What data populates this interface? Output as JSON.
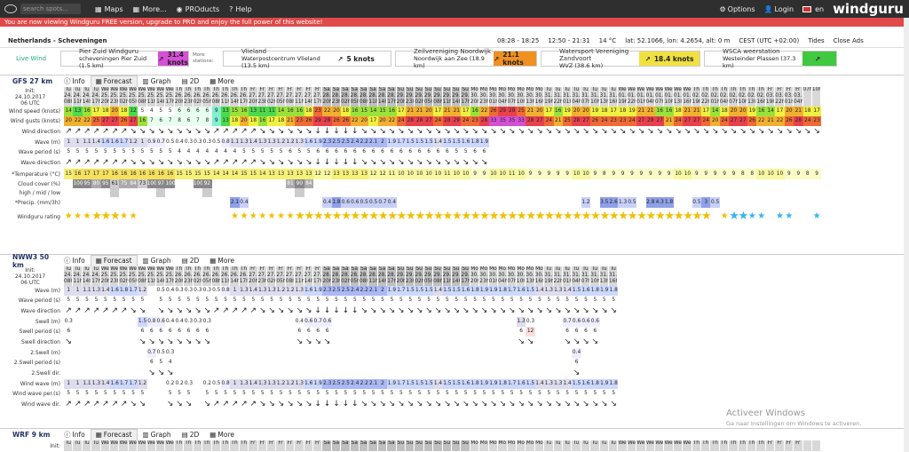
{
  "topbar": {
    "search_placeholder": "search spots...",
    "nav": [
      "Maps",
      "More...",
      "PROducts",
      "Help"
    ],
    "options": "Options",
    "login": "Login",
    "lang": "en",
    "brand": "windguru"
  },
  "promo": "You are now viewing Windguru FREE version, upgrade to PRO and enjoy the full power of this website!",
  "location": {
    "name": "Netherlands - Scheveningen",
    "sun": "08:28 - 18:25",
    "daylight": "12:50 - 21:31",
    "temp": "14 °C",
    "coords": "lat: 52.1066, lon: 4.2654, alt: 0 m",
    "tz": "CEST (UTC +02:00)",
    "tides": "Tides",
    "close": "Close Ads"
  },
  "live": {
    "label": "Live Wind",
    "more": "More stations:",
    "stations": [
      {
        "name": "Pier Zuid Windguru",
        "sub": "scheveningen Pier Zuid (1.5 km)",
        "knots": "31.4 knots",
        "color": "#d64fd6"
      },
      {
        "name": "Vlieland",
        "sub": "Waterpostcentrum Vlieland (13.5 km)",
        "knots": "5 knots",
        "color": "#ffffff"
      },
      {
        "name": "Zeilvereniging Noordwijk",
        "sub": "Noordwijk aan Zee (18.9 km)",
        "knots": "21.1 knots",
        "color": "#f09020"
      },
      {
        "name": "Watersport Vereniging Zandvoort",
        "sub": "WVZ (38.6 km)",
        "knots": "18.4 knots",
        "color": "#f0e040"
      },
      {
        "name": "WSCA weerstation",
        "sub": "Westeinder Plassen (37.3 km)",
        "knots": "",
        "color": "#40c840"
      }
    ]
  },
  "tabs": [
    "Info",
    "Forecast",
    "Graph",
    "2D",
    "More"
  ],
  "gfs": {
    "model": "GFS 27 km",
    "init": [
      "Init:",
      "24.10.2017",
      "06 UTC"
    ],
    "days": [
      "Tu",
      "Tu",
      "Tu",
      "Tu",
      "We",
      "We",
      "We",
      "We",
      "We",
      "We",
      "We",
      "We",
      "Th",
      "Th",
      "Th",
      "Th",
      "Th",
      "Th",
      "Th",
      "Th",
      "Fr",
      "Fr",
      "Fr",
      "Fr",
      "Fr",
      "Fr",
      "Fr",
      "Fr",
      "Sa",
      "Sa",
      "Sa",
      "Sa",
      "Sa",
      "Sa",
      "Sa",
      "Sa",
      "Su",
      "Su",
      "Su",
      "Su",
      "Su",
      "Su",
      "Su",
      "Su",
      "Mo",
      "Mo",
      "Mo",
      "Mo",
      "Mo",
      "Mo",
      "Mo",
      "Mo",
      "Tu",
      "Tu",
      "Tu",
      "Tu",
      "Tu",
      "Tu",
      "Tu",
      "Tu",
      "We",
      "We",
      "We",
      "We",
      "We",
      "We",
      "We",
      "We",
      "Th",
      "Th",
      "Th",
      "Th",
      "Th",
      "Th",
      "Th",
      "Th",
      "Fr",
      "Fr",
      "Fr",
      "Fr"
    ],
    "dates": [
      "24.",
      "24.",
      "24.",
      "24.",
      "25.",
      "25.",
      "25.",
      "25.",
      "25.",
      "25.",
      "25.",
      "25.",
      "26.",
      "26.",
      "26.",
      "26.",
      "26.",
      "26.",
      "26.",
      "26.",
      "27.",
      "27.",
      "27.",
      "27.",
      "27.",
      "27.",
      "27.",
      "27.",
      "28.",
      "28.",
      "28.",
      "28.",
      "28.",
      "28.",
      "28.",
      "28.",
      "29.",
      "29.",
      "29.",
      "29.",
      "29.",
      "29.",
      "29.",
      "29.",
      "30.",
      "30.",
      "30.",
      "30.",
      "30.",
      "30.",
      "30.",
      "30.",
      "31.",
      "31.",
      "31.",
      "31.",
      "31.",
      "31.",
      "31.",
      "31.",
      "01.",
      "01.",
      "01.",
      "01.",
      "01.",
      "01.",
      "01.",
      "01.",
      "02.",
      "02.",
      "02.",
      "02.",
      "02.",
      "02.",
      "02.",
      "02.",
      "03.",
      "03.",
      "03.",
      "03."
    ],
    "hours": [
      "08h",
      "11h",
      "14h",
      "17h",
      "20h",
      "23h",
      "02h",
      "05h",
      "08h",
      "11h",
      "14h",
      "17h",
      "20h",
      "23h",
      "02h",
      "05h",
      "08h",
      "11h",
      "14h",
      "17h",
      "20h",
      "23h",
      "02h",
      "05h",
      "08h",
      "11h",
      "14h",
      "17h",
      "20h",
      "23h",
      "02h",
      "05h",
      "08h",
      "11h",
      "14h",
      "17h",
      "20h",
      "23h",
      "02h",
      "05h",
      "08h",
      "11h",
      "14h",
      "17h",
      "20h",
      "23h",
      "01h",
      "04h",
      "07h",
      "10h",
      "13h",
      "16h",
      "19h",
      "22h",
      "01h",
      "04h",
      "07h",
      "10h",
      "13h",
      "16h",
      "19h",
      "22h",
      "01h",
      "04h",
      "07h",
      "10h",
      "13h",
      "16h",
      "19h",
      "22h",
      "01h",
      "04h",
      "07h",
      "10h",
      "13h",
      "16h",
      "19h",
      "22h",
      "01h",
      "04h",
      "07h",
      "10h"
    ],
    "labels": [
      "Wind speed (knots)",
      "Wind gusts (knots)",
      "Wind direction",
      "Wave (m)",
      "Wave period (s)",
      "Wave direction",
      "*Temperature (°C)",
      "Cloud cover (%)",
      "high / mid / low",
      "*Precip. (mm/3h)",
      "Windguru rating"
    ],
    "speed": [
      14,
      13,
      16,
      17,
      18,
      20,
      18,
      12,
      5,
      4,
      5,
      5,
      6,
      6,
      6,
      6,
      9,
      13,
      15,
      16,
      13,
      11,
      11,
      14,
      16,
      16,
      18,
      23,
      22,
      20,
      18,
      16,
      15,
      14,
      15,
      16,
      17,
      21,
      21,
      20,
      17,
      21,
      21,
      17,
      16,
      22,
      26,
      29,
      28,
      25,
      21,
      20,
      17,
      16,
      19,
      20,
      20,
      19,
      18,
      17,
      18,
      19,
      21,
      21,
      16,
      16,
      18,
      21,
      21,
      17,
      14,
      18,
      20,
      20,
      19,
      16,
      14,
      17,
      20,
      21,
      18,
      17
    ],
    "gusts": [
      20,
      22,
      22,
      25,
      27,
      27,
      26,
      27,
      16,
      7,
      6,
      7,
      8,
      6,
      7,
      8,
      9,
      13,
      18,
      20,
      18,
      16,
      17,
      18,
      21,
      23,
      26,
      29,
      28,
      26,
      26,
      22,
      20,
      17,
      20,
      22,
      24,
      28,
      28,
      27,
      24,
      28,
      29,
      24,
      23,
      28,
      33,
      35,
      35,
      33,
      28,
      27,
      24,
      21,
      25,
      28,
      27,
      26,
      24,
      23,
      23,
      24,
      27,
      29,
      27,
      21,
      24,
      27,
      27,
      24,
      20,
      24,
      27,
      27,
      26,
      22,
      21,
      22,
      26,
      28,
      24,
      23
    ],
    "wave": [
      "1",
      "1",
      "1.1",
      "1.4",
      "1.6",
      "1.6",
      "1.7",
      "1.2",
      "1",
      "0.9",
      "0.7",
      "0.5",
      "0.4",
      "0.3",
      "0.3",
      "0.3",
      "0.5",
      "0.8",
      "1.1",
      "1.3",
      "1.4",
      "1.3",
      "1.3",
      "1.2",
      "1.2",
      "1.3",
      "1.6",
      "1.9",
      "2.3",
      "2.5",
      "2.5",
      "2.4",
      "2.2",
      "2.1",
      "2",
      "1.9",
      "1.7",
      "1.5",
      "1.5",
      "1.5",
      "1.4",
      "1.5",
      "1.5",
      "1.6",
      "1.8",
      "1.9",
      "",
      "",
      "",
      "",
      "",
      "",
      "",
      "",
      "",
      "",
      "",
      "",
      "",
      "",
      "",
      "",
      "",
      "",
      "",
      "",
      "",
      "",
      "",
      "",
      "",
      "",
      "",
      "",
      "",
      "",
      "",
      "",
      "",
      "",
      "",
      ""
    ],
    "period": [
      "5",
      "5",
      "5",
      "5",
      "5",
      "5",
      "5",
      "5",
      "5",
      "5",
      "5",
      "5",
      "4",
      "4",
      "4",
      "4",
      "4",
      "4",
      "4",
      "5",
      "5",
      "5",
      "5",
      "5",
      "6",
      "5",
      "5",
      "6",
      "6",
      "6",
      "6",
      "6",
      "6",
      "6",
      "6",
      "6",
      "6",
      "6",
      "6",
      "6",
      "6",
      "6",
      "5",
      "5",
      "6",
      "6",
      "",
      "",
      "",
      "",
      "",
      "",
      "",
      "",
      "",
      "",
      "",
      "",
      "",
      "",
      "",
      "",
      "",
      "",
      "",
      "",
      "",
      "",
      "",
      "",
      "",
      "",
      "",
      "",
      "",
      "",
      "",
      "",
      "",
      "",
      "",
      ""
    ],
    "temp": [
      15,
      16,
      17,
      17,
      17,
      16,
      16,
      16,
      16,
      16,
      16,
      16,
      15,
      15,
      15,
      15,
      14,
      14,
      14,
      15,
      15,
      14,
      13,
      13,
      13,
      13,
      13,
      12,
      12,
      13,
      13,
      13,
      13,
      12,
      12,
      11,
      10,
      10,
      10,
      10,
      10,
      11,
      10,
      10,
      9,
      9,
      10,
      10,
      11,
      10,
      9,
      9,
      9,
      9,
      9,
      10,
      10,
      9,
      8,
      9,
      9,
      9,
      9,
      9,
      9,
      9,
      10,
      10,
      9,
      9,
      9,
      9,
      9,
      8,
      8,
      10,
      10,
      10,
      9,
      9,
      8,
      9
    ],
    "cloud": [
      "",
      "100",
      "95",
      "80",
      "95",
      "61",
      "75",
      "84",
      "73",
      "100",
      "97",
      "100",
      "",
      "",
      "100",
      "92",
      "",
      "",
      "",
      "",
      "",
      "",
      "",
      "",
      "81",
      "90",
      "84",
      "",
      "",
      "",
      "",
      "",
      "",
      "",
      "",
      "",
      "",
      "",
      "",
      "",
      "",
      "",
      "",
      "",
      "",
      "",
      "",
      "",
      "",
      "",
      "",
      "",
      "",
      "",
      "",
      "",
      "",
      "",
      "",
      "",
      "",
      "",
      "",
      "",
      "",
      "",
      "",
      "",
      "",
      "",
      "",
      "",
      "",
      "",
      "",
      "",
      "",
      "",
      "",
      "",
      "",
      "",
      "",
      ""
    ],
    "precip": [
      "",
      "",
      "",
      "",
      "",
      "",
      "",
      "",
      "",
      "",
      "",
      "",
      "",
      "",
      "",
      "",
      "",
      "",
      "2.1",
      "0.4",
      "",
      "",
      "",
      "",
      "",
      "",
      "",
      "",
      "0.4",
      "1.8",
      "0.6",
      "0.6",
      "0.5",
      "0.5",
      "0.7",
      "0.4",
      "",
      "",
      "",
      "",
      "",
      "",
      "",
      "",
      "",
      "",
      "",
      "",
      "",
      "",
      "",
      "",
      "",
      "",
      "",
      "",
      "1.2",
      "",
      "3.5",
      "2.6",
      "1.3",
      "0.5",
      "",
      "2.8",
      "4.3",
      "1.8",
      "",
      "",
      "0.5",
      "3",
      "0.5",
      "",
      "",
      "",
      "",
      "",
      "",
      "",
      "",
      "",
      ""
    ],
    "stars": [
      2,
      2,
      2,
      3,
      3,
      3,
      2,
      2,
      0,
      0,
      0,
      0,
      0,
      0,
      0,
      0,
      0,
      0,
      2,
      2,
      2,
      2,
      2,
      2,
      2,
      3,
      3,
      3,
      3,
      3,
      3,
      3,
      3,
      3,
      3,
      3,
      3,
      3,
      3,
      3,
      3,
      3,
      3,
      3,
      3,
      3,
      3,
      3,
      3,
      3,
      3,
      3,
      3,
      3,
      3,
      3,
      3,
      3,
      3,
      3,
      3,
      3,
      3,
      3,
      3,
      3,
      3,
      3,
      3,
      3,
      0,
      2,
      3,
      3,
      2,
      2,
      0,
      2,
      2,
      0,
      0,
      2
    ]
  },
  "nww3": {
    "model": "NWW3 50 km",
    "init": [
      "Init:",
      "24.10.2017",
      "06 UTC"
    ],
    "labels": [
      "Wave (m)",
      "Wave period (s)",
      "Wave direction",
      "Swell (m)",
      "Swell period (s)",
      "Swell direction",
      "2.Swell (m)",
      "2.Swell period (s)",
      "2.Swell dir.",
      "Wind wave (m)",
      "Wind wave per.(s)",
      "Wind wave dir."
    ],
    "wave": [
      "1",
      "1",
      "1.1",
      "1.3",
      "1.4",
      "1.6",
      "1.8",
      "1.7",
      "1.2",
      "",
      "0.5",
      "0.4",
      "0.3",
      "0.3",
      "0.3",
      "0.3",
      "0.5",
      "0.8",
      "1",
      "1.3",
      "1.4",
      "1.3",
      "1.3",
      "1.2",
      "1.2",
      "1.3",
      "1.6",
      "1.9",
      "2.3",
      "2.5",
      "2.5",
      "2.4",
      "2.2",
      "2.1",
      "2",
      "1.9",
      "1.7",
      "1.5",
      "1.5",
      "1.5",
      "1.4",
      "1.5",
      "1.5",
      "1.6",
      "1.8",
      "1.9",
      "1.9",
      "1.8",
      "1.7",
      "1.6",
      "1.5",
      "1.4",
      "1.3",
      "1.3",
      "1.4",
      "1.5",
      "1.6",
      "1.8",
      "1.9",
      "1.8"
    ],
    "swell": [
      "0.3",
      "",
      "",
      "",
      "",
      "",
      "",
      "",
      "1.5",
      "0.8",
      "0.6",
      "0.4",
      "0.4",
      "0.3",
      "0.3",
      "0.3",
      "",
      "",
      "",
      "",
      "",
      "",
      "",
      "",
      "",
      "0.4",
      "0.6",
      "0.7",
      "0.6",
      "",
      "",
      "",
      "",
      "",
      "",
      "",
      "",
      "",
      "",
      "",
      "",
      "",
      "",
      "",
      "",
      "",
      "",
      "",
      "",
      "1.3",
      "0.3",
      "",
      "",
      "",
      "0.7",
      "0.6",
      "0.6",
      "0.6",
      "",
      ""
    ],
    "windwave": [
      "1",
      "1",
      "1.1",
      "1.3",
      "1.4",
      "1.6",
      "1.7",
      "1.7",
      "1.2",
      "",
      "",
      "0.2",
      "0.2",
      "0.3",
      "",
      "0.2",
      "0.5",
      "0.8",
      "1",
      "1.3",
      "1.4",
      "1.3",
      "1.3",
      "1.2",
      "1.2",
      "1.3",
      "1.6",
      "1.9",
      "2.3",
      "2.5",
      "2.5",
      "2.4",
      "2.2",
      "2.1",
      "2",
      "1.9",
      "1.7",
      "1.5",
      "1.5",
      "1.5",
      "1.4",
      "1.5",
      "1.5",
      "1.6",
      "1.8",
      "1.9",
      "1.9",
      "1.8",
      "1.7",
      "1.6",
      "1.5",
      "1.4",
      "1.3",
      "1.3",
      "1.4",
      "1.5",
      "1.6",
      "1.8",
      "1.9",
      "1.8"
    ]
  },
  "wrf": {
    "model": "WRF 9 km",
    "init": "Init:"
  },
  "watermark": {
    "title": "Activeer Windows",
    "sub": "Ga naar Instellingen om Windows te activeren."
  },
  "colors": {
    "topbar": "#2f2f2f",
    "promo": "#e04a4a"
  }
}
